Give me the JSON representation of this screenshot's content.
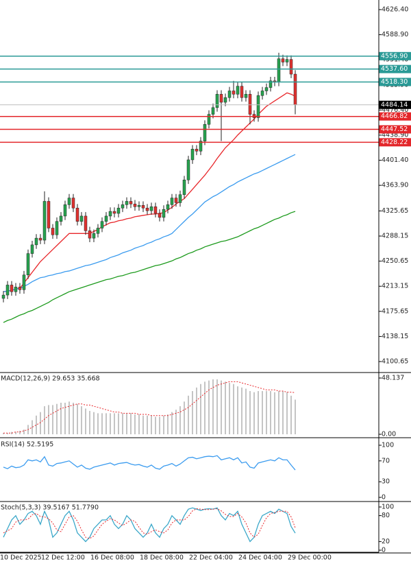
{
  "chart_data": [
    {
      "type": "candlestick",
      "categories": [
        "10 Dec 2025",
        null,
        null,
        null,
        null,
        null,
        null,
        null,
        null,
        null,
        "12 Dec 12:00",
        null,
        null,
        null,
        null,
        null,
        null,
        null,
        null,
        null,
        null,
        null,
        "16 Dec 08:00",
        null,
        null,
        null,
        null,
        null,
        null,
        null,
        null,
        null,
        null,
        null,
        "18 Dec 08:00",
        null,
        null,
        null,
        null,
        null,
        null,
        null,
        null,
        null,
        null,
        null,
        "22 Dec 04:00",
        null,
        null,
        null,
        null,
        null,
        null,
        null,
        null,
        null,
        null,
        null,
        "24 Dec 04:00",
        null,
        null,
        null,
        null,
        null,
        null,
        null,
        null,
        null,
        null,
        null,
        "29 Dec 00:00",
        null
      ],
      "open": [
        4195,
        4200,
        4215,
        4205,
        4212,
        4208,
        4230,
        4262,
        4275,
        4285,
        4282,
        4340,
        4300,
        4290,
        4310,
        4318,
        4335,
        4345,
        4330,
        4310,
        4318,
        4296,
        4285,
        4292,
        4300,
        4310,
        4318,
        4325,
        4322,
        4330,
        4335,
        4340,
        4336,
        4332,
        4334,
        4330,
        4326,
        4332,
        4322,
        4316,
        4328,
        4335,
        4345,
        4338,
        4350,
        4372,
        4402,
        4418,
        4415,
        4430,
        4455,
        4470,
        4480,
        4500,
        4488,
        4495,
        4505,
        4500,
        4512,
        4495,
        4500,
        4470,
        4465,
        4498,
        4505,
        4510,
        4520,
        4518,
        4553,
        4548,
        4552,
        4530
      ],
      "high": [
        4206,
        4221,
        4221,
        4218,
        4218,
        4236,
        4268,
        4281,
        4291,
        4291,
        4355,
        4346,
        4306,
        4316,
        4324,
        4341,
        4351,
        4351,
        4336,
        4324,
        4324,
        4302,
        4298,
        4306,
        4316,
        4324,
        4331,
        4331,
        4336,
        4341,
        4346,
        4346,
        4342,
        4340,
        4340,
        4336,
        4338,
        4338,
        4328,
        4334,
        4341,
        4351,
        4351,
        4356,
        4378,
        4408,
        4424,
        4424,
        4436,
        4461,
        4476,
        4486,
        4506,
        4506,
        4501,
        4511,
        4520,
        4518,
        4518,
        4506,
        4506,
        4476,
        4504,
        4511,
        4516,
        4526,
        4526,
        4562,
        4559,
        4558,
        4558,
        4536
      ],
      "low": [
        4189,
        4194,
        4199,
        4199,
        4202,
        4202,
        4224,
        4256,
        4269,
        4276,
        4276,
        4294,
        4284,
        4284,
        4304,
        4312,
        4329,
        4324,
        4304,
        4304,
        4290,
        4279,
        4279,
        4286,
        4294,
        4304,
        4312,
        4316,
        4316,
        4324,
        4329,
        4330,
        4326,
        4326,
        4324,
        4320,
        4320,
        4316,
        4310,
        4310,
        4322,
        4329,
        4332,
        4332,
        4344,
        4366,
        4396,
        4409,
        4409,
        4424,
        4449,
        4464,
        4474,
        4430,
        4482,
        4489,
        4494,
        4494,
        4489,
        4489,
        4455,
        4459,
        4459,
        4492,
        4499,
        4504,
        4512,
        4512,
        4542,
        4542,
        4524,
        4470
      ],
      "close": [
        4200,
        4215,
        4205,
        4212,
        4208,
        4230,
        4262,
        4275,
        4285,
        4282,
        4340,
        4300,
        4290,
        4310,
        4318,
        4335,
        4345,
        4330,
        4310,
        4318,
        4296,
        4285,
        4292,
        4300,
        4310,
        4318,
        4325,
        4322,
        4330,
        4335,
        4340,
        4336,
        4332,
        4334,
        4330,
        4326,
        4332,
        4322,
        4316,
        4328,
        4335,
        4345,
        4338,
        4350,
        4372,
        4402,
        4418,
        4415,
        4430,
        4455,
        4470,
        4480,
        4500,
        4488,
        4495,
        4505,
        4500,
        4512,
        4495,
        4500,
        4470,
        4465,
        4498,
        4505,
        4510,
        4520,
        4518,
        4553,
        4548,
        4552,
        4530,
        4484.14
      ],
      "up_color": "#27a34f",
      "down_color": "#e0312f",
      "series": [
        {
          "color": "#e8262a",
          "values": [
            4205,
            4206,
            4207,
            4209,
            4210,
            4218,
            4226,
            4234,
            4242,
            4250,
            4256,
            4262,
            4268,
            4274,
            4280,
            4286,
            4292,
            4292,
            4292,
            4292,
            4292,
            4292,
            4295,
            4298,
            4302,
            4305,
            4308,
            4309,
            4311,
            4312,
            4314,
            4315,
            4317,
            4318,
            4319,
            4320,
            4321,
            4321,
            4322,
            4323,
            4327,
            4331,
            4336,
            4340,
            4344,
            4351,
            4358,
            4365,
            4372,
            4379,
            4387,
            4395,
            4404,
            4412,
            4420,
            4426,
            4432,
            4439,
            4445,
            4451,
            4457,
            4463,
            4470,
            4476,
            4482,
            4486,
            4490,
            4494,
            4498,
            4502,
            4500,
            4497
          ]
        },
        {
          "color": "#3a9bef",
          "values": [
            4205,
            4206,
            4207,
            4209,
            4210,
            4213,
            4216,
            4220,
            4223,
            4226,
            4227,
            4229,
            4230,
            4232,
            4233,
            4235,
            4236,
            4238,
            4240,
            4242,
            4244,
            4245,
            4247,
            4249,
            4251,
            4253,
            4256,
            4258,
            4260,
            4263,
            4265,
            4267,
            4270,
            4272,
            4274,
            4277,
            4279,
            4282,
            4284,
            4287,
            4289,
            4292,
            4298,
            4304,
            4310,
            4316,
            4321,
            4327,
            4333,
            4339,
            4343,
            4347,
            4350,
            4354,
            4358,
            4362,
            4365,
            4369,
            4372,
            4375,
            4378,
            4381,
            4383,
            4386,
            4389,
            4392,
            4395,
            4398,
            4401,
            4404,
            4407,
            4410
          ]
        },
        {
          "color": "#1c9a1c",
          "values": [
            4159,
            4162,
            4164,
            4167,
            4170,
            4172,
            4175,
            4177,
            4180,
            4183,
            4186,
            4189,
            4193,
            4196,
            4199,
            4202,
            4205,
            4207,
            4209,
            4211,
            4213,
            4215,
            4217,
            4219,
            4221,
            4223,
            4224,
            4226,
            4228,
            4229,
            4231,
            4233,
            4234,
            4236,
            4238,
            4240,
            4242,
            4244,
            4245,
            4247,
            4249,
            4251,
            4254,
            4256,
            4259,
            4262,
            4264,
            4267,
            4269,
            4272,
            4274,
            4276,
            4278,
            4280,
            4281,
            4283,
            4285,
            4287,
            4290,
            4293,
            4296,
            4299,
            4301,
            4304,
            4307,
            4310,
            4313,
            4315,
            4318,
            4320,
            4323,
            4325
          ]
        }
      ],
      "levels": [
        {
          "value": 4556.9,
          "label": "4556.90",
          "color": "#2a9a96"
        },
        {
          "value": 4537.6,
          "label": "4537.60",
          "color": "#2a9a96"
        },
        {
          "value": 4518.3,
          "label": "4518.30",
          "color": "#2a9a96"
        },
        {
          "value": 4466.82,
          "label": "4466.82",
          "color": "#e3262a"
        },
        {
          "value": 4447.52,
          "label": "4447.52",
          "color": "#e3262a"
        },
        {
          "value": 4428.22,
          "label": "4428.22",
          "color": "#e3262a"
        }
      ],
      "current_price": 4484.14,
      "ylim": [
        4085.28,
        4640.75
      ],
      "yticks": [
        {
          "value": 4626.4,
          "label": "4626.40"
        },
        {
          "value": 4588.9,
          "label": "4588.90"
        },
        {
          "value": 4551.4,
          "label": "4551.40"
        },
        {
          "value": 4513.9,
          "label": "4513.90"
        },
        {
          "value": 4476.4,
          "label": "4476.40"
        },
        {
          "value": 4438.9,
          "label": "4438.90"
        },
        {
          "value": 4401.4,
          "label": "4401.40"
        },
        {
          "value": 4363.9,
          "label": "4363.90"
        },
        {
          "value": 4325.65,
          "label": "4325.65"
        },
        {
          "value": 4288.15,
          "label": "4288.15"
        },
        {
          "value": 4250.65,
          "label": "4250.65"
        },
        {
          "value": 4213.15,
          "label": "4213.15"
        },
        {
          "value": 4175.65,
          "label": "4175.65"
        },
        {
          "value": 4138.15,
          "label": "4138.15"
        },
        {
          "value": 4100.65,
          "label": "4100.65"
        }
      ]
    },
    {
      "type": "macd",
      "title": "MACD(12,26,9) 29.653 35.668",
      "values": [
        1,
        1,
        2,
        2,
        3,
        4,
        8,
        12,
        16,
        19,
        24,
        25,
        25,
        26,
        27,
        27,
        28,
        27,
        26,
        24,
        22,
        20,
        19,
        18,
        18,
        18,
        18,
        18,
        18,
        18,
        18,
        18,
        17,
        17,
        16,
        16,
        16,
        15,
        15,
        16,
        17,
        19,
        21,
        24,
        28,
        33,
        37,
        40,
        43,
        45,
        46,
        47,
        47,
        46,
        45,
        44,
        43,
        41,
        40,
        39,
        37,
        36,
        37,
        37,
        37,
        37,
        36,
        37,
        37,
        36,
        33,
        29.653
      ],
      "color": "#b0b0b0",
      "signal": {
        "color": "#e8262a",
        "values": [
          1,
          1,
          1,
          2,
          2,
          3,
          4,
          6,
          8,
          10,
          13,
          16,
          18,
          20,
          22,
          23,
          24,
          25,
          26,
          26,
          25,
          25,
          24,
          23,
          22,
          21,
          20,
          19,
          19,
          18,
          18,
          18,
          18,
          17,
          17,
          17,
          16,
          16,
          16,
          16,
          16,
          17,
          18,
          19,
          21,
          23,
          26,
          29,
          32,
          35,
          38,
          40,
          42,
          43,
          44,
          45,
          45,
          45,
          44,
          43,
          42,
          41,
          40,
          39,
          38,
          38,
          38,
          37,
          37,
          36,
          36,
          35.668
        ]
      },
      "ylim": [
        -2.35,
        51.66
      ],
      "yticks": [
        48.137,
        {
          "value": 0,
          "label": "0.00"
        }
      ]
    },
    {
      "type": "line",
      "title": "RSI(14) 52.5195",
      "series": [
        {
          "color": "#3a9bef",
          "values": [
            58,
            55,
            60,
            57,
            58,
            62,
            72,
            70,
            72,
            68,
            78,
            62,
            60,
            65,
            66,
            68,
            70,
            64,
            58,
            62,
            56,
            54,
            58,
            60,
            62,
            64,
            66,
            62,
            65,
            66,
            67,
            64,
            62,
            63,
            60,
            58,
            62,
            56,
            54,
            60,
            62,
            65,
            60,
            64,
            70,
            76,
            77,
            74,
            76,
            78,
            79,
            78,
            80,
            72,
            74,
            76,
            72,
            76,
            66,
            68,
            58,
            56,
            66,
            68,
            70,
            72,
            70,
            76,
            72,
            72,
            62,
            52.5195
          ]
        }
      ],
      "ylim": [
        -6.6,
        110.5
      ],
      "yticks": [
        100,
        70,
        30,
        0
      ]
    },
    {
      "type": "stoch",
      "title": "Stoch(5,3,3) 39.5167 51.7790",
      "series": [
        {
          "color": "#3aa7c9",
          "values": [
            30,
            50,
            70,
            80,
            60,
            70,
            85,
            90,
            80,
            60,
            90,
            70,
            30,
            40,
            60,
            80,
            90,
            70,
            40,
            30,
            20,
            30,
            50,
            60,
            70,
            70,
            80,
            60,
            50,
            60,
            80,
            70,
            50,
            40,
            30,
            40,
            60,
            40,
            30,
            50,
            60,
            80,
            70,
            60,
            80,
            95,
            98,
            95,
            92,
            95,
            96,
            95,
            98,
            80,
            70,
            85,
            80,
            90,
            60,
            40,
            20,
            30,
            60,
            80,
            85,
            90,
            85,
            95,
            90,
            85,
            55,
            39.5167
          ]
        },
        {
          "color": "#e8262a",
          "dashed": true,
          "values": [
            40,
            45,
            50,
            65,
            70,
            70,
            72,
            82,
            85,
            78,
            77,
            73,
            63,
            47,
            43,
            60,
            77,
            80,
            67,
            47,
            30,
            27,
            33,
            47,
            60,
            67,
            73,
            70,
            63,
            57,
            63,
            70,
            67,
            53,
            40,
            37,
            43,
            47,
            43,
            40,
            47,
            63,
            70,
            70,
            70,
            78,
            91,
            96,
            95,
            94,
            94,
            95,
            96,
            91,
            83,
            78,
            78,
            85,
            77,
            63,
            40,
            30,
            37,
            57,
            75,
            85,
            87,
            90,
            90,
            90,
            77,
            51.779
          ]
        }
      ],
      "ylim": [
        -4.8,
        109.5
      ],
      "yticks": [
        100,
        80,
        20,
        0
      ]
    }
  ]
}
